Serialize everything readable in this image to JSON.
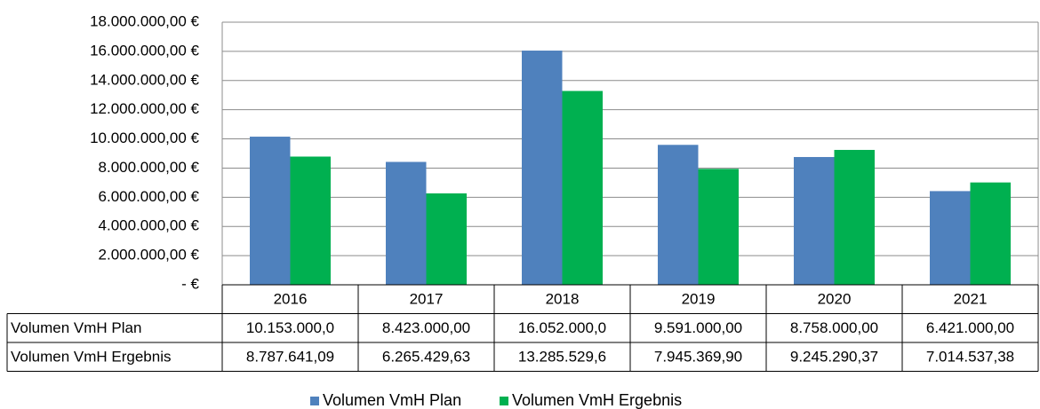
{
  "chart_data": {
    "type": "bar",
    "categories": [
      "2016",
      "2017",
      "2018",
      "2019",
      "2020",
      "2021"
    ],
    "series": [
      {
        "name": "Volumen VmH Plan",
        "color": "#4f81bd",
        "values": [
          10153000,
          8423000,
          16052000,
          9591000,
          8758000,
          6421000
        ],
        "value_labels": [
          "10.153.000,0",
          "8.423.000,00",
          "16.052.000,0",
          "9.591.000,00",
          "8.758.000,00",
          "6.421.000,00"
        ]
      },
      {
        "name": "Volumen VmH Ergebnis",
        "color": "#00b050",
        "values": [
          8787641.09,
          6265429.63,
          13285529.6,
          7945369.9,
          9245290.37,
          7014537.38
        ],
        "value_labels": [
          "8.787.641,09",
          "6.265.429,63",
          "13.285.529,6",
          "7.945.369,90",
          "9.245.290,37",
          "7.014.537,38"
        ]
      }
    ],
    "ylim": [
      0,
      18000000
    ],
    "yticks": [
      {
        "value": 0,
        "label": "-   €"
      },
      {
        "value": 2000000,
        "label": "2.000.000,00 €"
      },
      {
        "value": 4000000,
        "label": "4.000.000,00 €"
      },
      {
        "value": 6000000,
        "label": "6.000.000,00 €"
      },
      {
        "value": 8000000,
        "label": "8.000.000,00 €"
      },
      {
        "value": 10000000,
        "label": "10.000.000,00 €"
      },
      {
        "value": 12000000,
        "label": "12.000.000,00 €"
      },
      {
        "value": 14000000,
        "label": "14.000.000,00 €"
      },
      {
        "value": 16000000,
        "label": "16.000.000,00 €"
      },
      {
        "value": 18000000,
        "label": "18.000.000,00 €"
      }
    ],
    "grid": true
  }
}
